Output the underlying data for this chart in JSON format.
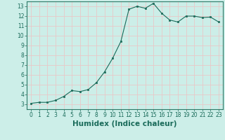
{
  "x": [
    0,
    1,
    2,
    3,
    4,
    5,
    6,
    7,
    8,
    9,
    10,
    11,
    12,
    13,
    14,
    15,
    16,
    17,
    18,
    19,
    20,
    21,
    22,
    23
  ],
  "y": [
    3.1,
    3.2,
    3.2,
    3.4,
    3.8,
    4.4,
    4.3,
    4.5,
    5.2,
    6.3,
    7.7,
    9.4,
    12.7,
    13.0,
    12.8,
    13.3,
    12.3,
    11.6,
    11.4,
    12.0,
    12.0,
    11.85,
    11.9,
    11.4
  ],
  "line_color": "#1a6b5a",
  "marker": "s",
  "marker_size": 2.0,
  "bg_color": "#cceee8",
  "grid_color": "#e8c8c8",
  "xlabel": "Humidex (Indice chaleur)",
  "xlim": [
    -0.5,
    23.5
  ],
  "ylim": [
    2.5,
    13.5
  ],
  "yticks": [
    3,
    4,
    5,
    6,
    7,
    8,
    9,
    10,
    11,
    12,
    13
  ],
  "xticks": [
    0,
    1,
    2,
    3,
    4,
    5,
    6,
    7,
    8,
    9,
    10,
    11,
    12,
    13,
    14,
    15,
    16,
    17,
    18,
    19,
    20,
    21,
    22,
    23
  ],
  "tick_label_fontsize": 5.5,
  "xlabel_fontsize": 7.5,
  "axis_color": "#2d7a68",
  "tick_color": "#1a6b5a",
  "linewidth": 0.8
}
